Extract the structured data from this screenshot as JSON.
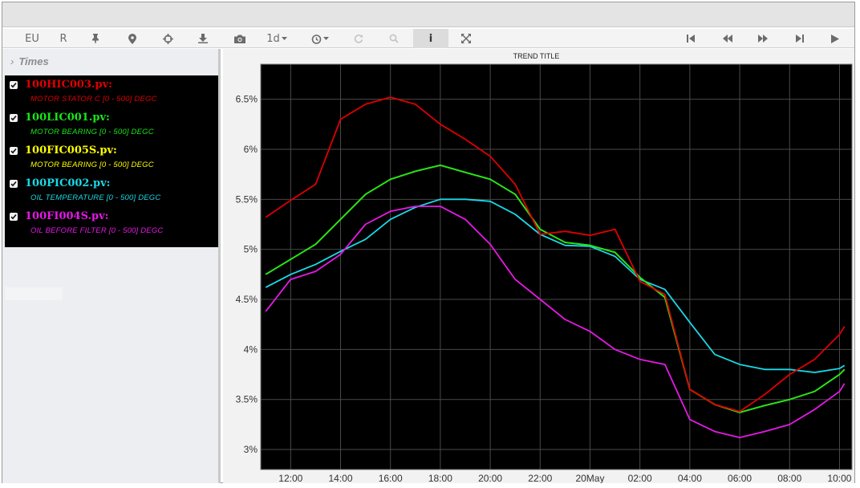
{
  "toolbar": {
    "eu_label": "EU",
    "r_label": "R",
    "range_label": "1d",
    "info_label": "i"
  },
  "sidebar": {
    "times_label": "Times",
    "items": [
      {
        "tag": "100HIC003.pv:",
        "desc": "MOTOR STATOR C [0 - 500] DEGC",
        "color": "#e00000"
      },
      {
        "tag": "100LIC001.pv:",
        "desc": "MOTOR BEARING [0 - 500] DEGC",
        "color": "#19e619"
      },
      {
        "tag": "100FIC005S.pv:",
        "desc": "MOTOR BEARING [0 - 500] DEGC",
        "color": "#ffff00"
      },
      {
        "tag": "100PIC002.pv:",
        "desc": "OIL TEMPERATURE [0 - 500] DEGC",
        "color": "#19d9e6"
      },
      {
        "tag": "100FI004S.pv:",
        "desc": "OIL BEFORE FILTER [0 - 500] DEGC",
        "color": "#e619e6"
      }
    ]
  },
  "chart_data": {
    "type": "line",
    "title": "TREND TITLE",
    "xlabel": "",
    "ylabel": "",
    "x_ticks": [
      "12:00",
      "14:00",
      "16:00",
      "18:00",
      "20:00",
      "22:00",
      "20May",
      "02:00",
      "04:00",
      "06:00",
      "08:00",
      "10:00"
    ],
    "x_tick_hours": [
      12,
      14,
      16,
      18,
      20,
      22,
      24,
      26,
      28,
      30,
      32,
      34
    ],
    "xlim": [
      10.8,
      34.5
    ],
    "y_ticks": [
      "3%",
      "3.5%",
      "4%",
      "4.5%",
      "5%",
      "5.5%",
      "6%",
      "6.5%"
    ],
    "y_tick_values": [
      3,
      3.5,
      4,
      4.5,
      5,
      5.5,
      6,
      6.5
    ],
    "ylim": [
      2.8,
      6.85
    ],
    "grid": true,
    "background": "#000000",
    "x_hours": [
      11,
      12,
      13,
      14,
      15,
      16,
      17,
      18,
      19,
      20,
      21,
      22,
      23,
      24,
      25,
      26,
      27,
      28,
      29,
      30,
      31,
      32,
      33,
      34,
      34.2
    ],
    "series": [
      {
        "name": "100HIC003.pv",
        "color": "#e00000",
        "values": [
          5.32,
          5.49,
          5.65,
          6.3,
          6.45,
          6.52,
          6.45,
          6.25,
          6.1,
          5.93,
          5.65,
          5.15,
          5.18,
          5.14,
          5.2,
          4.68,
          4.55,
          3.6,
          3.45,
          3.38,
          3.55,
          3.75,
          3.9,
          4.15,
          4.23
        ]
      },
      {
        "name": "100LIC001.pv",
        "color": "#19e619",
        "values": [
          4.75,
          4.9,
          5.05,
          5.3,
          5.55,
          5.7,
          5.78,
          5.84,
          5.77,
          5.7,
          5.55,
          5.2,
          5.07,
          5.04,
          4.97,
          4.72,
          4.52,
          3.6,
          3.45,
          3.37,
          3.44,
          3.5,
          3.58,
          3.75,
          3.8
        ]
      },
      {
        "name": "100FIC005S.pv",
        "color": "#ffff00",
        "values": [
          4.75,
          4.9,
          5.05,
          5.3,
          5.55,
          5.7,
          5.78,
          5.84,
          5.77,
          5.7,
          5.55,
          5.2,
          5.07,
          5.04,
          4.97,
          4.72,
          4.52,
          3.6,
          3.45,
          3.37,
          3.44,
          3.5,
          3.58,
          3.75,
          3.8
        ]
      },
      {
        "name": "100PIC002.pv",
        "color": "#19d9e6",
        "values": [
          4.62,
          4.75,
          4.85,
          4.98,
          5.1,
          5.3,
          5.42,
          5.5,
          5.5,
          5.48,
          5.35,
          5.15,
          5.04,
          5.03,
          4.93,
          4.7,
          4.6,
          4.27,
          3.95,
          3.85,
          3.8,
          3.8,
          3.77,
          3.81,
          3.84
        ]
      },
      {
        "name": "100FI004S.pv",
        "color": "#e619e6",
        "values": [
          4.38,
          4.7,
          4.78,
          4.95,
          5.25,
          5.38,
          5.43,
          5.43,
          5.3,
          5.05,
          4.7,
          4.5,
          4.3,
          4.18,
          4.0,
          3.9,
          3.85,
          3.3,
          3.18,
          3.12,
          3.18,
          3.25,
          3.4,
          3.58,
          3.66
        ]
      }
    ]
  }
}
